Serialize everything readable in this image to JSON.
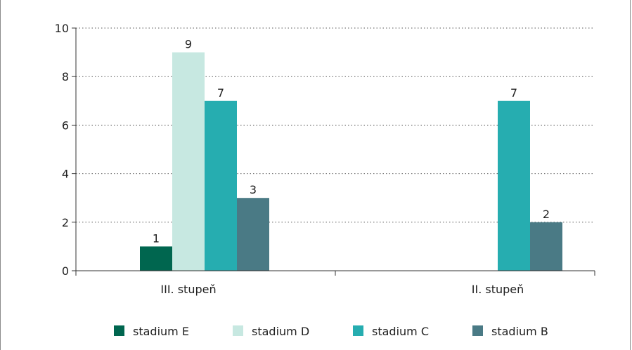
{
  "chart_data": {
    "type": "bar",
    "title": "",
    "xlabel": "",
    "ylabel": "",
    "categories": [
      "III. stupeň",
      "II. stupeň"
    ],
    "series": [
      {
        "name": "stadium E",
        "color": "#00664f",
        "values": [
          1,
          null
        ]
      },
      {
        "name": "stadium D",
        "color": "#c7e8e1",
        "values": [
          9,
          null
        ]
      },
      {
        "name": "stadium C",
        "color": "#26adb0",
        "values": [
          7,
          7
        ]
      },
      {
        "name": "stadium B",
        "color": "#4a7a85",
        "values": [
          3,
          2
        ]
      }
    ],
    "ylim": [
      0,
      10
    ],
    "yticks": [
      0,
      2,
      4,
      6,
      8,
      10
    ],
    "grid": true,
    "data_labels": true,
    "legend_position": "bottom"
  }
}
